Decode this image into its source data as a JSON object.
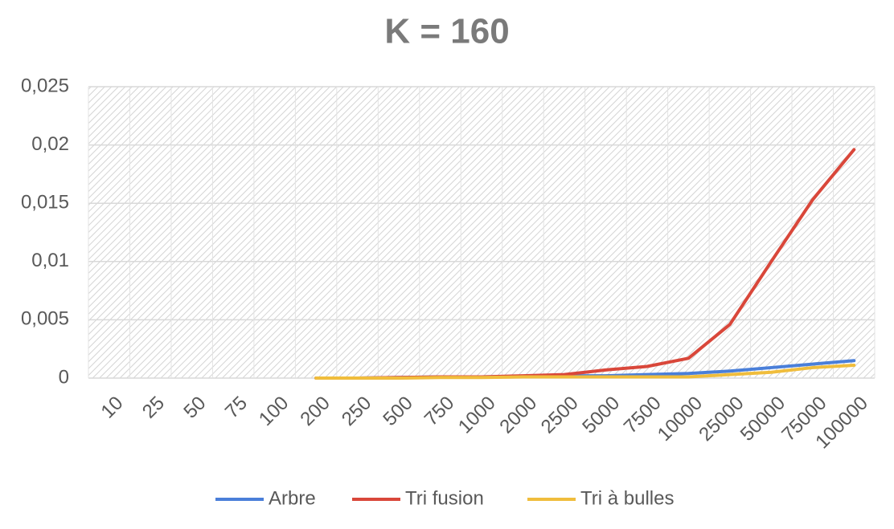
{
  "chart_data": {
    "type": "line",
    "title": "K = 160",
    "categories": [
      "10",
      "25",
      "50",
      "75",
      "100",
      "200",
      "250",
      "500",
      "750",
      "1000",
      "2000",
      "2500",
      "5000",
      "7500",
      "10000",
      "25000",
      "50000",
      "75000",
      "100000"
    ],
    "series": [
      {
        "name": "Arbre",
        "color": "#4a7fd9",
        "values": [
          null,
          null,
          null,
          null,
          null,
          0,
          0,
          5e-05,
          0.0001,
          0.0001,
          0.00015,
          0.0002,
          0.0002,
          0.0003,
          0.0004,
          0.0006,
          0.0009,
          0.0012,
          0.0015
        ]
      },
      {
        "name": "Tri fusion",
        "color": "#d9473a",
        "values": [
          null,
          null,
          null,
          null,
          null,
          0,
          0,
          5e-05,
          0.0001,
          0.0001,
          0.0002,
          0.0003,
          0.0007,
          0.001,
          0.0017,
          0.0046,
          0.01,
          0.0153,
          0.0196
        ]
      },
      {
        "name": "Tri à bulles",
        "color": "#f0bd3c",
        "values": [
          null,
          null,
          null,
          null,
          null,
          0,
          0,
          0,
          5e-05,
          5e-05,
          0.0001,
          0.0001,
          0.0001,
          0.0001,
          0.0001,
          0.0003,
          0.0005,
          0.0009,
          0.0011
        ]
      }
    ],
    "ylim": [
      0,
      0.025
    ],
    "yticks": [
      0,
      {
        "value": 0.005,
        "label": "0,005"
      },
      {
        "value": 0.01,
        "label": "0,01"
      },
      {
        "value": 0.015,
        "label": "0,015"
      },
      {
        "value": 0.02,
        "label": "0,02"
      },
      {
        "value": 0.025,
        "label": "0,025"
      }
    ],
    "grid": true,
    "legend": "bottom"
  }
}
